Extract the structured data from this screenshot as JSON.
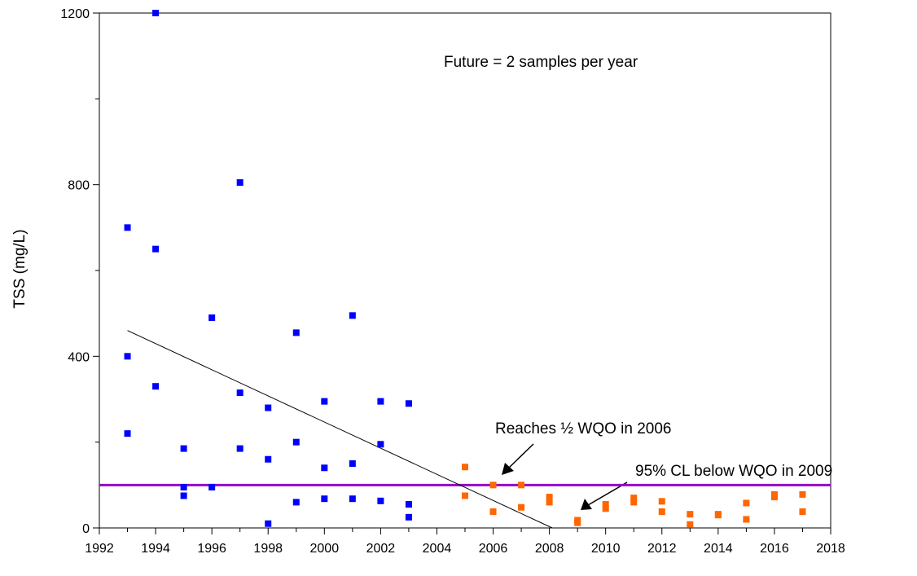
{
  "chart_data": {
    "type": "scatter",
    "y_label": "TSS (mg/L)",
    "xlim": [
      1992,
      2018
    ],
    "xticks": [
      1992,
      1994,
      1996,
      1998,
      2000,
      2002,
      2004,
      2006,
      2008,
      2010,
      2012,
      2014,
      2016,
      2018
    ],
    "xminorticks": [
      1993,
      1995,
      1997,
      1999,
      2001,
      2003,
      2005,
      2007,
      2009,
      2011,
      2013,
      2015,
      2017
    ],
    "ylim": [
      0,
      1200
    ],
    "yticks": [
      0,
      400,
      800,
      1200
    ],
    "yminorticks": [
      200,
      600,
      1000
    ],
    "series": [
      {
        "color": "#0000ff",
        "x": [
          1993,
          1993,
          1993,
          1994,
          1994,
          1994,
          1995,
          1995,
          1995,
          1996,
          1996,
          1997,
          1997,
          1997,
          1998,
          1998,
          1998,
          1999,
          1999,
          1999,
          2000,
          2000,
          2000,
          2001,
          2001,
          2001,
          2002,
          2002,
          2002,
          2003,
          2003,
          2003
        ],
        "values": [
          700,
          400,
          220,
          1200,
          650,
          330,
          185,
          95,
          75,
          490,
          95,
          805,
          315,
          185,
          280,
          160,
          10,
          455,
          200,
          60,
          295,
          140,
          68,
          495,
          150,
          68,
          295,
          195,
          63,
          290,
          55,
          25
        ]
      },
      {
        "color": "#ff6600",
        "x": [
          2005,
          2005,
          2006,
          2006,
          2007,
          2007,
          2008,
          2008,
          2009,
          2009,
          2010,
          2010,
          2011,
          2011,
          2012,
          2012,
          2013,
          2013,
          2014,
          2014,
          2015,
          2015,
          2016,
          2016,
          2017,
          2017
        ],
        "values": [
          142,
          75,
          100,
          38,
          100,
          48,
          72,
          60,
          18,
          12,
          55,
          45,
          70,
          60,
          62,
          38,
          32,
          8,
          32,
          30,
          58,
          20,
          78,
          72,
          78,
          38
        ]
      }
    ],
    "trend": {
      "x": [
        1993,
        2008.1
      ],
      "values": [
        460,
        0
      ],
      "color": "#000000"
    },
    "reference_line": {
      "value": 100,
      "color": "#9900cc"
    },
    "annotations": [
      "Future = 2 samples per year",
      "Reaches ½ WQO in 2006",
      "95% CL below WQO in 2009"
    ]
  }
}
